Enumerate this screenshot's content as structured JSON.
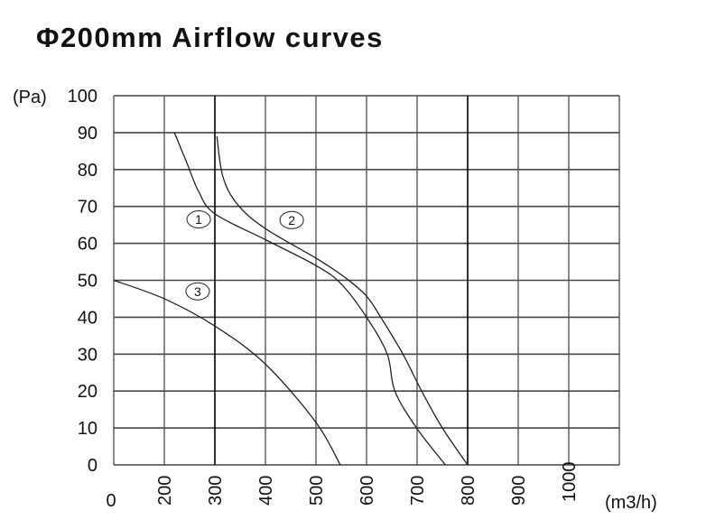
{
  "chart_data": {
    "type": "line",
    "title": "Φ200mm Airflow curves",
    "ylabel": "(Pa)",
    "xlabel": "(m3/h)",
    "ylim": [
      0,
      100
    ],
    "xlim": [
      0,
      1100
    ],
    "grid": true,
    "x_ticks": [
      "0",
      "200",
      "300",
      "400",
      "500",
      "600",
      "700",
      "800",
      "900",
      "1000"
    ],
    "x_tick_values": [
      0,
      200,
      300,
      400,
      500,
      600,
      700,
      800,
      900,
      1000
    ],
    "y_ticks": [
      "0",
      "10",
      "20",
      "30",
      "40",
      "50",
      "60",
      "70",
      "80",
      "90",
      "100"
    ],
    "y_tick_values": [
      0,
      10,
      20,
      30,
      40,
      50,
      60,
      70,
      80,
      90,
      100
    ],
    "line_color": "#222222",
    "series": [
      {
        "name": "1",
        "label_at": [
          268,
          66.5
        ],
        "points": [
          [
            220,
            90
          ],
          [
            244,
            82
          ],
          [
            268,
            74
          ],
          [
            300,
            68
          ],
          [
            400,
            61
          ],
          [
            500,
            54
          ],
          [
            550,
            49
          ],
          [
            600,
            40
          ],
          [
            641,
            30
          ],
          [
            656,
            20
          ],
          [
            699,
            10
          ],
          [
            756,
            0
          ]
        ]
      },
      {
        "name": "2",
        "label_at": [
          452,
          66.3
        ],
        "points": [
          [
            304,
            89
          ],
          [
            316,
            78
          ],
          [
            345,
            70.5
          ],
          [
            400,
            64
          ],
          [
            500,
            56
          ],
          [
            559,
            50.6
          ],
          [
            600,
            45.7
          ],
          [
            628,
            40
          ],
          [
            672,
            30
          ],
          [
            709,
            20
          ],
          [
            750,
            10
          ],
          [
            800,
            0
          ]
        ]
      },
      {
        "name": "3",
        "label_at": [
          266,
          47
        ],
        "points": [
          [
            0,
            50
          ],
          [
            200,
            45
          ],
          [
            300,
            37.6
          ],
          [
            400,
            27.3
          ],
          [
            500,
            11.5
          ],
          [
            548,
            0
          ]
        ]
      }
    ]
  }
}
